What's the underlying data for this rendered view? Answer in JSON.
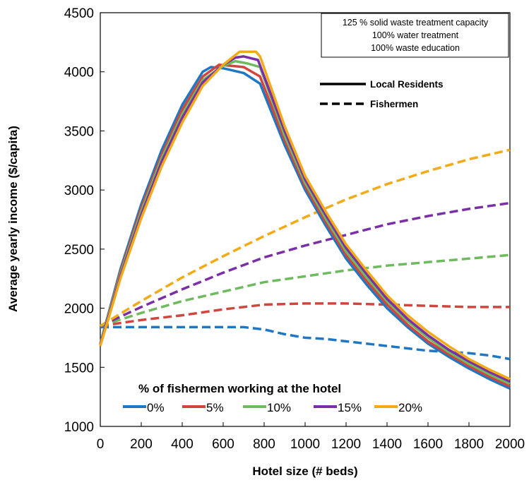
{
  "chart_data": {
    "type": "line",
    "title": "",
    "xlabel": "Hotel size (# beds)",
    "ylabel": "Average yearly income ($/capita)",
    "xlim": [
      0,
      2000
    ],
    "ylim": [
      1000,
      4500
    ],
    "xticks": [
      0,
      200,
      400,
      600,
      800,
      1000,
      1200,
      1400,
      1600,
      1800,
      2000
    ],
    "yticks": [
      1000,
      1500,
      2000,
      2500,
      3000,
      3500,
      4000,
      4500
    ],
    "grid": false,
    "annotation_lines": [
      "125 % solid waste treatment capacity",
      "100% water treatment",
      "100% waste education"
    ],
    "line_style_legend": [
      {
        "label": "Local Residents",
        "dash": "solid"
      },
      {
        "label": "Fishermen",
        "dash": "dashed"
      }
    ],
    "legend_title": "% of fishermen working at the hotel",
    "legend_position": "bottom-left",
    "colors": {
      "0%": "#1f77c4",
      "5%": "#d0463e",
      "10%": "#6dbb5e",
      "15%": "#7b2fa6",
      "20%": "#f2ab17"
    },
    "series": [
      {
        "name": "0%",
        "group": "Local Residents",
        "dash": "solid",
        "x": [
          0,
          100,
          200,
          300,
          400,
          500,
          540,
          600,
          700,
          780,
          900,
          1000,
          1100,
          1200,
          1300,
          1400,
          1500,
          1600,
          1700,
          1800,
          1900,
          2000
        ],
        "y": [
          1700,
          2340,
          2880,
          3340,
          3720,
          4000,
          4040,
          4030,
          3990,
          3900,
          3380,
          3000,
          2700,
          2420,
          2200,
          2000,
          1840,
          1700,
          1590,
          1490,
          1400,
          1320
        ]
      },
      {
        "name": "5%",
        "group": "Local Residents",
        "dash": "solid",
        "x": [
          0,
          100,
          200,
          300,
          400,
          500,
          580,
          640,
          700,
          780,
          900,
          1000,
          1100,
          1200,
          1300,
          1400,
          1500,
          1600,
          1700,
          1800,
          1900,
          2000
        ],
        "y": [
          1700,
          2320,
          2850,
          3300,
          3680,
          3960,
          4060,
          4050,
          4040,
          3960,
          3420,
          3030,
          2730,
          2450,
          2230,
          2030,
          1860,
          1720,
          1610,
          1510,
          1420,
          1340
        ]
      },
      {
        "name": "10%",
        "group": "Local Residents",
        "dash": "solid",
        "x": [
          0,
          100,
          200,
          300,
          400,
          500,
          600,
          660,
          720,
          780,
          900,
          1000,
          1100,
          1200,
          1300,
          1400,
          1500,
          1600,
          1700,
          1800,
          1900,
          2000
        ],
        "y": [
          1700,
          2300,
          2820,
          3270,
          3640,
          3930,
          4050,
          4090,
          4070,
          4040,
          3460,
          3060,
          2760,
          2480,
          2260,
          2060,
          1890,
          1750,
          1630,
          1530,
          1440,
          1360
        ]
      },
      {
        "name": "15%",
        "group": "Local Residents",
        "dash": "solid",
        "x": [
          0,
          100,
          200,
          300,
          400,
          500,
          600,
          660,
          700,
          770,
          900,
          1000,
          1100,
          1200,
          1300,
          1400,
          1500,
          1600,
          1700,
          1800,
          1900,
          2000
        ],
        "y": [
          1690,
          2280,
          2790,
          3240,
          3610,
          3910,
          4060,
          4120,
          4130,
          4100,
          3500,
          3090,
          2790,
          2510,
          2290,
          2080,
          1910,
          1770,
          1650,
          1550,
          1460,
          1380
        ]
      },
      {
        "name": "20%",
        "group": "Local Residents",
        "dash": "solid",
        "x": [
          0,
          100,
          200,
          300,
          400,
          500,
          600,
          680,
          760,
          780,
          900,
          1000,
          1100,
          1200,
          1300,
          1400,
          1500,
          1600,
          1700,
          1800,
          1900,
          2000
        ],
        "y": [
          1680,
          2260,
          2760,
          3200,
          3570,
          3880,
          4060,
          4170,
          4170,
          4130,
          3540,
          3120,
          2820,
          2540,
          2320,
          2110,
          1940,
          1800,
          1680,
          1570,
          1480,
          1400
        ]
      },
      {
        "name": "0%",
        "group": "Fishermen",
        "dash": "dashed",
        "x": [
          0,
          200,
          400,
          600,
          700,
          800,
          900,
          1000,
          1100,
          1200,
          1300,
          1400,
          1500,
          1600,
          1700,
          1800,
          1900,
          2000
        ],
        "y": [
          1840,
          1840,
          1840,
          1840,
          1840,
          1820,
          1780,
          1750,
          1740,
          1720,
          1700,
          1680,
          1660,
          1640,
          1630,
          1620,
          1600,
          1570
        ]
      },
      {
        "name": "5%",
        "group": "Fishermen",
        "dash": "dashed",
        "x": [
          0,
          200,
          400,
          600,
          800,
          1000,
          1200,
          1400,
          1600,
          1800,
          2000
        ],
        "y": [
          1850,
          1900,
          1940,
          1990,
          2030,
          2040,
          2040,
          2030,
          2020,
          2010,
          2010
        ]
      },
      {
        "name": "10%",
        "group": "Fishermen",
        "dash": "dashed",
        "x": [
          0,
          200,
          400,
          600,
          800,
          1000,
          1200,
          1400,
          1600,
          1800,
          2000
        ],
        "y": [
          1850,
          1960,
          2060,
          2140,
          2220,
          2270,
          2320,
          2360,
          2390,
          2420,
          2450
        ]
      },
      {
        "name": "15%",
        "group": "Fishermen",
        "dash": "dashed",
        "x": [
          0,
          200,
          400,
          600,
          800,
          1000,
          1200,
          1400,
          1600,
          1800,
          2000
        ],
        "y": [
          1850,
          2010,
          2160,
          2300,
          2430,
          2530,
          2620,
          2710,
          2780,
          2840,
          2890
        ]
      },
      {
        "name": "20%",
        "group": "Fishermen",
        "dash": "dashed",
        "x": [
          0,
          200,
          400,
          600,
          800,
          1000,
          1200,
          1400,
          1600,
          1800,
          2000
        ],
        "y": [
          1850,
          2060,
          2260,
          2440,
          2610,
          2770,
          2920,
          3050,
          3160,
          3260,
          3340
        ]
      }
    ]
  }
}
